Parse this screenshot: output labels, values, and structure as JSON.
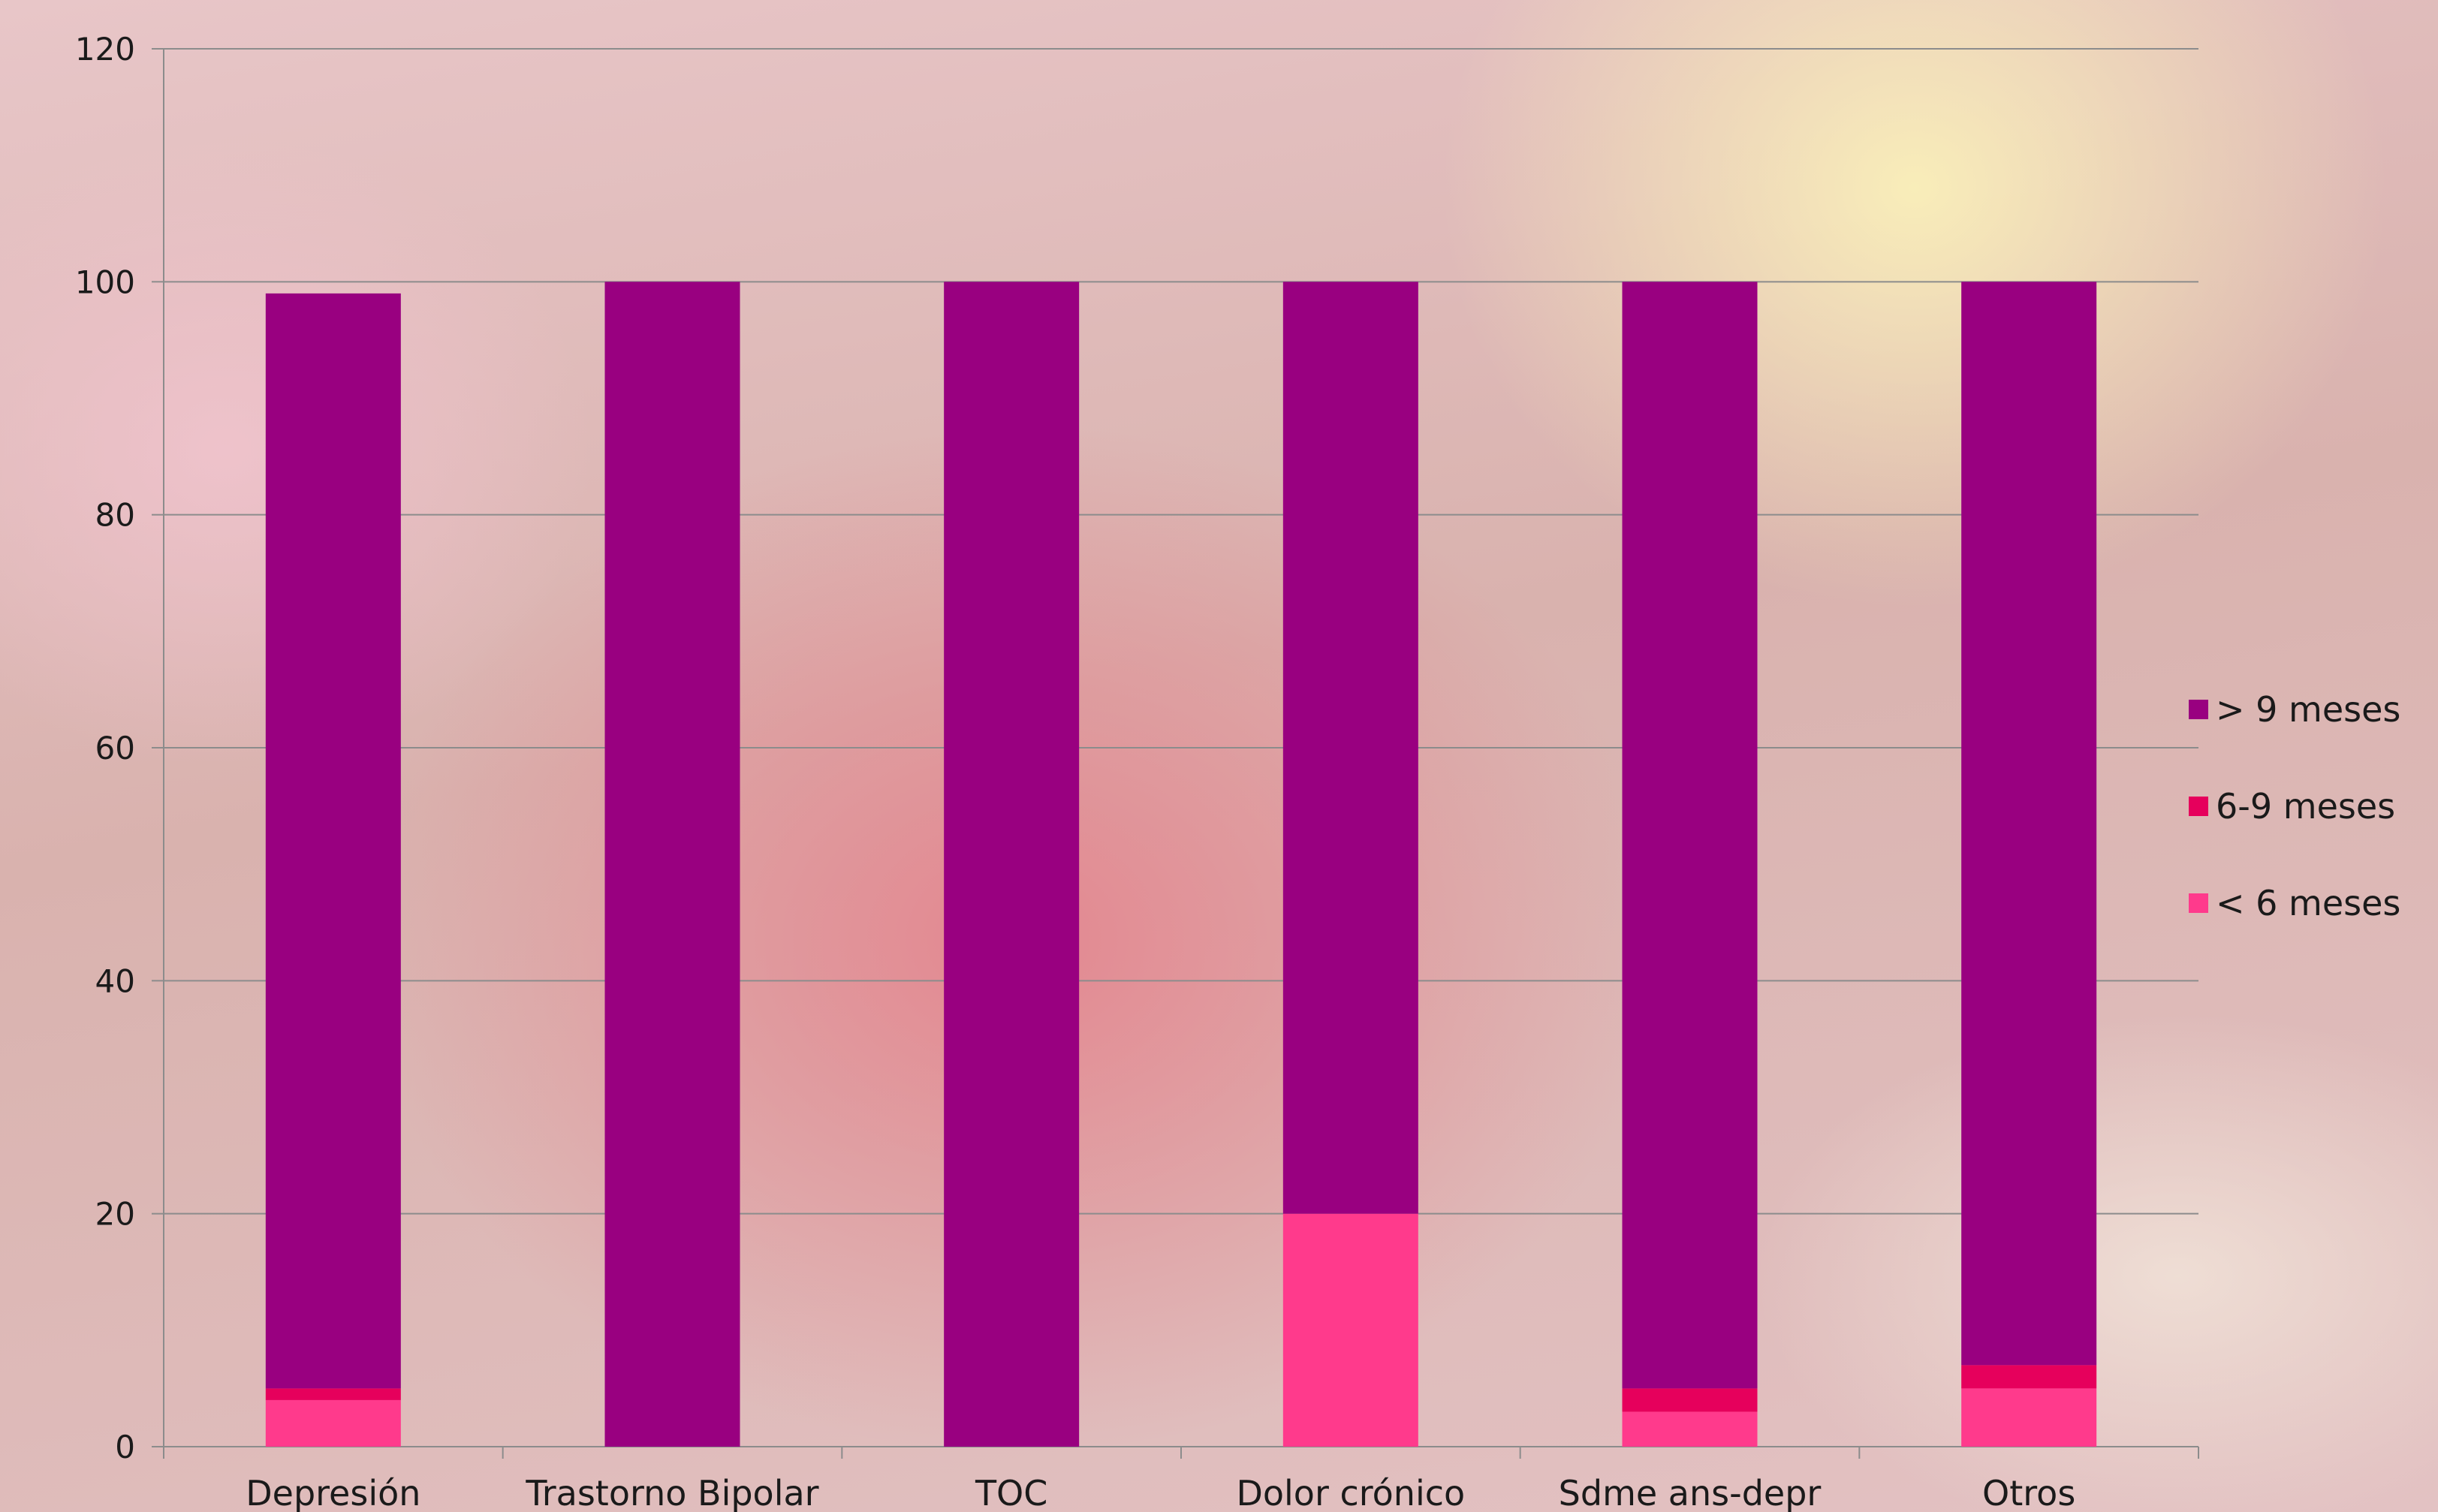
{
  "chart_data": {
    "type": "bar",
    "stacked": true,
    "title": "",
    "xlabel": "",
    "ylabel": "",
    "ylim": [
      0,
      120
    ],
    "yticks": [
      0,
      20,
      40,
      60,
      80,
      100,
      120
    ],
    "grid": true,
    "legend_position": "right",
    "categories": [
      "Depresión",
      "Trastorno Bipolar",
      "TOC",
      "Dolor crónico",
      "Sdme ans-depr",
      "Otros"
    ],
    "series": [
      {
        "name": "< 6 meses",
        "color": "#ff3a8c",
        "values": [
          4,
          0,
          0,
          20,
          3,
          5
        ]
      },
      {
        "name": "6-9 meses",
        "color": "#e6005c",
        "values": [
          1,
          0,
          0,
          0,
          2,
          2
        ]
      },
      {
        "name": "> 9 meses",
        "color": "#990080",
        "values": [
          94,
          100,
          100,
          80,
          95,
          93
        ]
      }
    ],
    "legend_order": [
      "> 9 meses",
      "6-9 meses",
      "< 6 meses"
    ]
  }
}
